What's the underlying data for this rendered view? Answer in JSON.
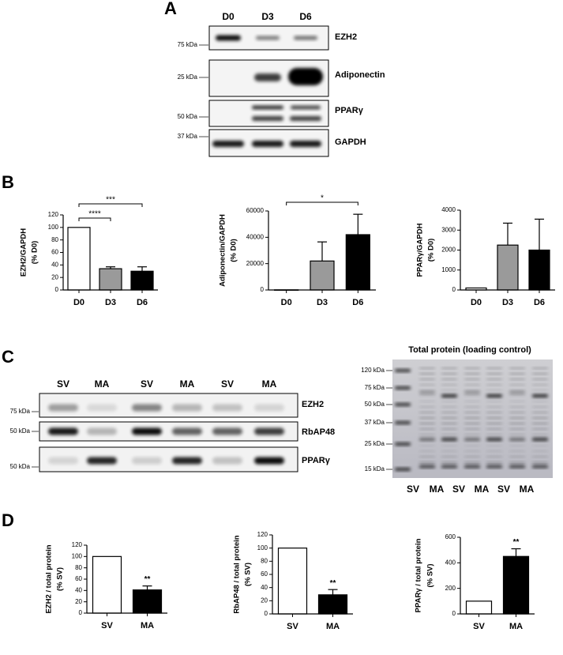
{
  "panel_a": {
    "letter": "A",
    "lanes": [
      "D0",
      "D3",
      "D6"
    ],
    "rows": [
      {
        "label": "EZH2",
        "marker": "75 kDa"
      },
      {
        "label": "Adiponectin",
        "marker": "25 kDa"
      },
      {
        "label": "PPARγ",
        "marker": "50 kDa"
      },
      {
        "label": "GAPDH",
        "marker": "37 kDa"
      }
    ]
  },
  "panel_b": {
    "letter": "B"
  },
  "panel_c": {
    "letter": "C",
    "lanes": [
      "SV",
      "MA",
      "SV",
      "MA",
      "SV",
      "MA"
    ],
    "rows": [
      {
        "label": "EZH2",
        "marker": "75 kDa"
      },
      {
        "label": "RbAP48",
        "marker": "50 kDa"
      },
      {
        "label": "PPARγ",
        "marker": "50 kDa"
      }
    ],
    "gel": {
      "title": "Total protein (loading control)",
      "markers": [
        "120 kDa",
        "75 kDa",
        "50 kDa",
        "37 kDa",
        "25 kDa",
        "15 kDa"
      ],
      "lanes": [
        "SV",
        "MA",
        "SV",
        "MA",
        "SV",
        "MA"
      ]
    }
  },
  "panel_d": {
    "letter": "D"
  },
  "chart_data": [
    {
      "type": "bar",
      "ylabel": [
        "EZH2/GAPDH",
        "(% D0)"
      ],
      "categories": [
        "D0",
        "D3",
        "D6"
      ],
      "values": [
        100,
        34,
        30
      ],
      "errors": [
        null,
        3,
        7
      ],
      "colors": [
        "#ffffff",
        "#9a9a9a",
        "#000000"
      ],
      "ylim": [
        0,
        120
      ],
      "yticks": [
        0,
        20,
        40,
        60,
        80,
        100,
        120
      ],
      "brackets": [
        {
          "label": "****",
          "categories": [
            "D0",
            "D3"
          ]
        },
        {
          "label": "***",
          "categories": [
            "D0",
            "D6"
          ]
        }
      ]
    },
    {
      "type": "bar",
      "ylabel": [
        "Adiponectin/GAPDH",
        "(% D0)"
      ],
      "categories": [
        "D0",
        "D3",
        "D6"
      ],
      "values": [
        100,
        22000,
        42000
      ],
      "errors": [
        null,
        14500,
        15500
      ],
      "colors": [
        "#ffffff",
        "#9a9a9a",
        "#000000"
      ],
      "ylim": [
        0,
        60000
      ],
      "yticks": [
        0,
        20000,
        40000,
        60000
      ],
      "brackets": [
        {
          "label": "*",
          "categories": [
            "D0",
            "D6"
          ]
        }
      ]
    },
    {
      "type": "bar",
      "ylabel": [
        "PPARγ/GAPDH",
        "(% D0)"
      ],
      "categories": [
        "D0",
        "D3",
        "D6"
      ],
      "values": [
        100,
        2250,
        2000
      ],
      "errors": [
        null,
        1100,
        1550
      ],
      "colors": [
        "#ffffff",
        "#9a9a9a",
        "#000000"
      ],
      "ylim": [
        0,
        4000
      ],
      "yticks": [
        0,
        1000,
        2000,
        3000,
        4000
      ]
    },
    {
      "type": "bar",
      "ylabel": [
        "EZH2 / total protein",
        "(% SV)"
      ],
      "categories": [
        "SV",
        "MA"
      ],
      "values": [
        100,
        41
      ],
      "errors": [
        null,
        7
      ],
      "colors": [
        "#ffffff",
        "#000000"
      ],
      "ylim": [
        0,
        120
      ],
      "yticks": [
        0,
        20,
        40,
        60,
        80,
        100,
        120
      ],
      "bar_annotations": [
        null,
        "**"
      ]
    },
    {
      "type": "bar",
      "ylabel": [
        "RbAP48 / total protein",
        "(% SV)"
      ],
      "categories": [
        "SV",
        "MA"
      ],
      "values": [
        100,
        29
      ],
      "errors": [
        null,
        8
      ],
      "colors": [
        "#ffffff",
        "#000000"
      ],
      "ylim": [
        0,
        120
      ],
      "yticks": [
        0,
        20,
        40,
        60,
        80,
        100,
        120
      ],
      "bar_annotations": [
        null,
        "**"
      ]
    },
    {
      "type": "bar",
      "ylabel": [
        "PPARγ / total protein",
        "(% SV)"
      ],
      "categories": [
        "SV",
        "MA"
      ],
      "values": [
        100,
        450
      ],
      "errors": [
        null,
        60
      ],
      "colors": [
        "#ffffff",
        "#000000"
      ],
      "ylim": [
        0,
        600
      ],
      "yticks": [
        0,
        200,
        400,
        600
      ],
      "bar_annotations": [
        null,
        "**"
      ]
    }
  ]
}
